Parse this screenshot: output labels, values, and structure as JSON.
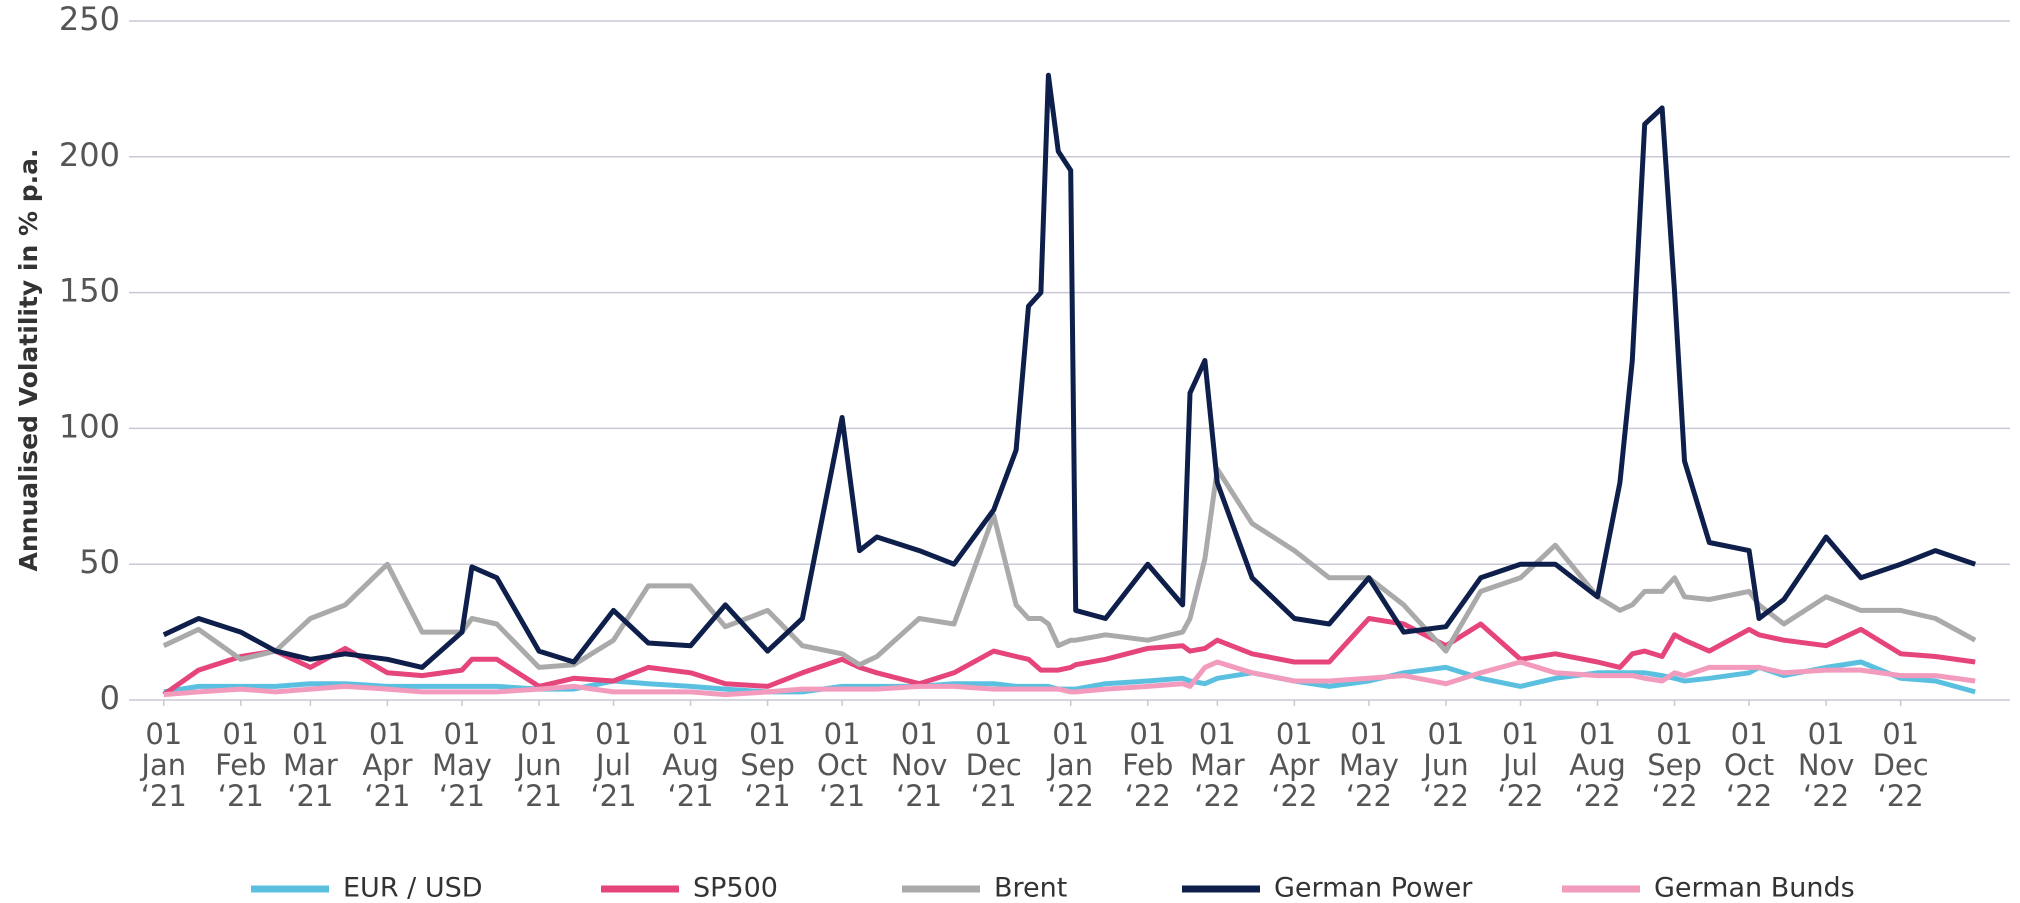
{
  "chart_data": {
    "type": "line",
    "y_label": "Annualised Volatility in % p.a.",
    "x": [
      "2021-01-01",
      "2021-01-15",
      "2021-02-01",
      "2021-02-15",
      "2021-03-01",
      "2021-03-15",
      "2021-04-01",
      "2021-04-15",
      "2021-05-01",
      "2021-05-05",
      "2021-05-15",
      "2021-06-01",
      "2021-06-15",
      "2021-07-01",
      "2021-07-15",
      "2021-08-01",
      "2021-08-15",
      "2021-09-01",
      "2021-09-15",
      "2021-10-01",
      "2021-10-08",
      "2021-10-15",
      "2021-11-01",
      "2021-11-15",
      "2021-12-01",
      "2021-12-10",
      "2021-12-15",
      "2021-12-20",
      "2021-12-23",
      "2021-12-27",
      "2022-01-01",
      "2022-01-03",
      "2022-01-15",
      "2022-02-01",
      "2022-02-15",
      "2022-02-18",
      "2022-02-24",
      "2022-03-01",
      "2022-03-15",
      "2022-04-01",
      "2022-04-15",
      "2022-05-01",
      "2022-05-15",
      "2022-06-01",
      "2022-06-15",
      "2022-07-01",
      "2022-07-15",
      "2022-08-01",
      "2022-08-10",
      "2022-08-15",
      "2022-08-20",
      "2022-08-27",
      "2022-09-01",
      "2022-09-05",
      "2022-09-15",
      "2022-10-01",
      "2022-10-05",
      "2022-10-15",
      "2022-11-01",
      "2022-11-15",
      "2022-12-01",
      "2022-12-15",
      "2022-12-31"
    ],
    "series": [
      {
        "name": "EUR / USD",
        "color": "#5bc0e0",
        "values": [
          3,
          5,
          5,
          5,
          6,
          6,
          5,
          5,
          5,
          5,
          5,
          4,
          4,
          7,
          6,
          5,
          4,
          3,
          3,
          5,
          5,
          5,
          5,
          6,
          6,
          5,
          5,
          5,
          5,
          4,
          4,
          4,
          6,
          7,
          8,
          7,
          6,
          8,
          10,
          7,
          5,
          7,
          10,
          12,
          8,
          5,
          8,
          10,
          10,
          10,
          10,
          9,
          8,
          7,
          8,
          10,
          12,
          9,
          12,
          14,
          8,
          7,
          3
        ]
      },
      {
        "name": "SP500",
        "color": "#e5457a",
        "values": [
          2,
          11,
          16,
          18,
          12,
          19,
          10,
          9,
          11,
          15,
          15,
          5,
          8,
          7,
          12,
          10,
          6,
          5,
          10,
          15,
          12,
          10,
          6,
          10,
          18,
          16,
          15,
          11,
          11,
          11,
          12,
          13,
          15,
          19,
          20,
          18,
          19,
          22,
          17,
          14,
          14,
          30,
          28,
          20,
          28,
          15,
          17,
          14,
          12,
          17,
          18,
          16,
          24,
          22,
          18,
          26,
          24,
          22,
          20,
          26,
          17,
          16,
          14
        ]
      },
      {
        "name": "Brent",
        "color": "#aaaaaa",
        "values": [
          20,
          26,
          15,
          18,
          30,
          35,
          50,
          25,
          25,
          30,
          28,
          12,
          13,
          22,
          42,
          42,
          27,
          33,
          20,
          17,
          13,
          16,
          30,
          28,
          68,
          35,
          30,
          30,
          28,
          20,
          22,
          22,
          24,
          22,
          25,
          30,
          52,
          85,
          65,
          55,
          45,
          45,
          35,
          18,
          40,
          45,
          57,
          38,
          33,
          35,
          40,
          40,
          45,
          38,
          37,
          40,
          35,
          28,
          38,
          33,
          33,
          30,
          22
        ]
      },
      {
        "name": "German Power",
        "color": "#0d1f4a",
        "values": [
          24,
          30,
          25,
          18,
          15,
          17,
          15,
          12,
          25,
          49,
          45,
          18,
          14,
          33,
          21,
          20,
          35,
          18,
          30,
          104,
          55,
          60,
          55,
          50,
          70,
          92,
          145,
          150,
          230,
          202,
          195,
          33,
          30,
          50,
          35,
          113,
          125,
          80,
          45,
          30,
          28,
          45,
          25,
          27,
          45,
          50,
          50,
          38,
          80,
          125,
          212,
          218,
          150,
          88,
          58,
          55,
          30,
          37,
          60,
          45,
          50,
          55,
          50
        ]
      },
      {
        "name": "German Bunds",
        "color": "#f29bbd",
        "values": [
          2,
          3,
          4,
          3,
          4,
          5,
          4,
          3,
          3,
          3,
          3,
          4,
          5,
          3,
          3,
          3,
          2,
          3,
          4,
          4,
          4,
          4,
          5,
          5,
          4,
          4,
          4,
          4,
          4,
          4,
          3,
          3,
          4,
          5,
          6,
          5,
          12,
          14,
          10,
          7,
          7,
          8,
          9,
          6,
          10,
          14,
          10,
          9,
          9,
          9,
          8,
          7,
          10,
          9,
          12,
          12,
          12,
          10,
          11,
          11,
          9,
          9,
          7
        ]
      }
    ],
    "xlim": [
      "2020-12-18",
      "2023-01-14"
    ],
    "xticks": [
      {
        "value": "2021-01-01",
        "label": "01 Jan ‘21"
      },
      {
        "value": "2021-02-01",
        "label": "01 Feb ‘21"
      },
      {
        "value": "2021-03-01",
        "label": "01 Mar ‘21"
      },
      {
        "value": "2021-04-01",
        "label": "01 Apr ‘21"
      },
      {
        "value": "2021-05-01",
        "label": "01 May ‘21"
      },
      {
        "value": "2021-06-01",
        "label": "01 Jun ‘21"
      },
      {
        "value": "2021-07-01",
        "label": "01 Jul ‘21"
      },
      {
        "value": "2021-08-01",
        "label": "01 Aug ‘21"
      },
      {
        "value": "2021-09-01",
        "label": "01 Sep ‘21"
      },
      {
        "value": "2021-10-01",
        "label": "01 Oct ‘21"
      },
      {
        "value": "2021-11-01",
        "label": "01 Nov ‘21"
      },
      {
        "value": "2021-12-01",
        "label": "01 Dec ‘21"
      },
      {
        "value": "2022-01-01",
        "label": "01 Jan ‘22"
      },
      {
        "value": "2022-02-01",
        "label": "01 Feb ‘22"
      },
      {
        "value": "2022-03-01",
        "label": "01 Mar ‘22"
      },
      {
        "value": "2022-04-01",
        "label": "01 Apr ‘22"
      },
      {
        "value": "2022-05-01",
        "label": "01 May ‘22"
      },
      {
        "value": "2022-06-01",
        "label": "01 Jun ‘22"
      },
      {
        "value": "2022-07-01",
        "label": "01 Jul ‘22"
      },
      {
        "value": "2022-08-01",
        "label": "01 Aug ‘22"
      },
      {
        "value": "2022-09-01",
        "label": "01 Sep ‘22"
      },
      {
        "value": "2022-10-01",
        "label": "01 Oct ‘22"
      },
      {
        "value": "2022-11-01",
        "label": "01 Nov ‘22"
      },
      {
        "value": "2022-12-01",
        "label": "01 Dec ‘22"
      }
    ],
    "ylim": [
      0,
      250
    ],
    "yticks": [
      0,
      50,
      100,
      150,
      200,
      250
    ],
    "grid": true,
    "legend": "bottom"
  }
}
